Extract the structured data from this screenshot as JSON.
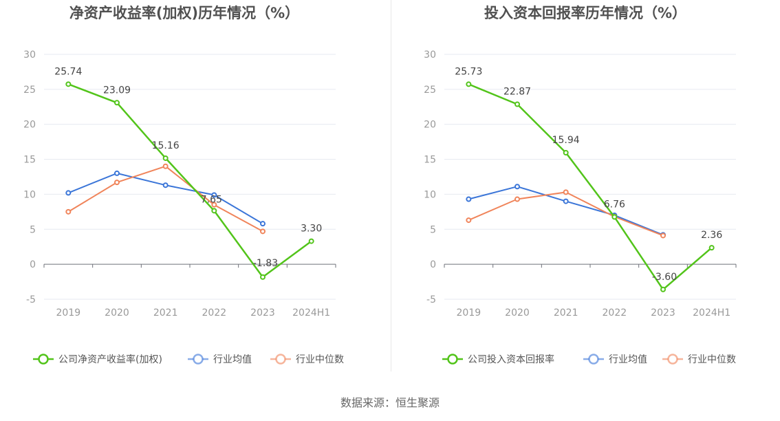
{
  "source": "数据来源：恒生聚源",
  "chart_data": [
    {
      "type": "line",
      "title": "净资产收益率(加权)历年情况（%）",
      "categories": [
        "2019",
        "2020",
        "2021",
        "2022",
        "2023",
        "2024H1"
      ],
      "ylim": [
        -5,
        30
      ],
      "yticks": [
        -5,
        0,
        5,
        10,
        15,
        20,
        25,
        30
      ],
      "grid": true,
      "legend_position": "bottom",
      "series": [
        {
          "name": "公司净资产收益率(加权)",
          "color": "#52c41a",
          "values": [
            25.74,
            23.09,
            15.16,
            7.65,
            -1.83,
            3.3
          ],
          "labels": [
            "25.74",
            "23.09",
            "15.16",
            "7.65",
            "-1.83",
            "3.30"
          ]
        },
        {
          "name": "行业均值",
          "color": "#3a75d8",
          "values": [
            10.2,
            13.0,
            11.3,
            9.9,
            5.8,
            null
          ]
        },
        {
          "name": "行业中位数",
          "color": "#f0845a",
          "values": [
            7.5,
            11.7,
            14.0,
            8.5,
            4.7,
            null
          ]
        }
      ]
    },
    {
      "type": "line",
      "title": "投入资本回报率历年情况（%）",
      "categories": [
        "2019",
        "2020",
        "2021",
        "2022",
        "2023",
        "2024H1"
      ],
      "ylim": [
        -5,
        30
      ],
      "yticks": [
        -5,
        0,
        5,
        10,
        15,
        20,
        25,
        30
      ],
      "grid": true,
      "legend_position": "bottom",
      "series": [
        {
          "name": "公司投入资本回报率",
          "color": "#52c41a",
          "values": [
            25.73,
            22.87,
            15.94,
            6.76,
            -3.6,
            2.36
          ],
          "labels": [
            "25.73",
            "22.87",
            "15.94",
            "6.76",
            "-3.60",
            "2.36"
          ]
        },
        {
          "name": "行业均值",
          "color": "#3a75d8",
          "values": [
            9.3,
            11.1,
            9.0,
            7.0,
            4.2,
            null
          ]
        },
        {
          "name": "行业中位数",
          "color": "#f0845a",
          "values": [
            6.3,
            9.3,
            10.3,
            6.8,
            4.1,
            null
          ]
        }
      ]
    }
  ]
}
